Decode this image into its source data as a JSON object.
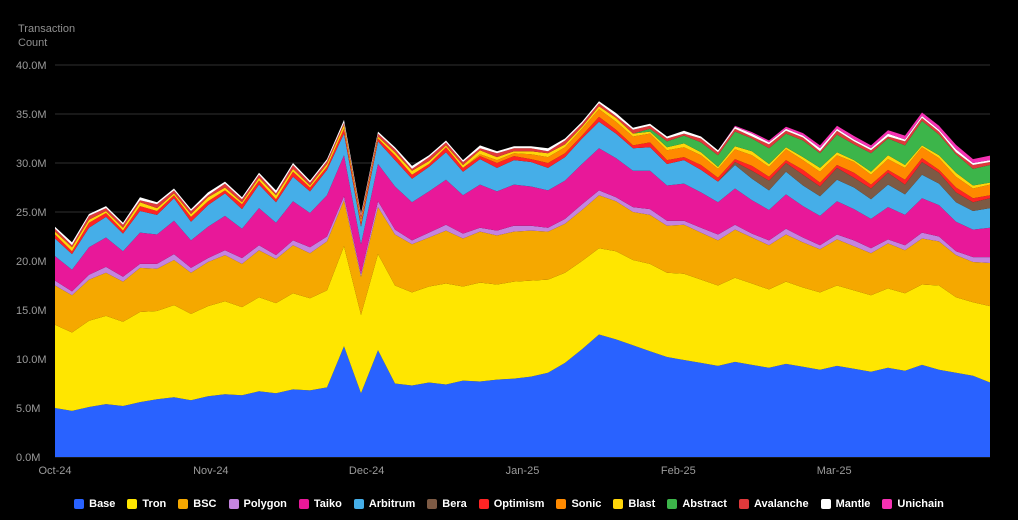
{
  "chart_data": {
    "type": "area",
    "stacked": true,
    "title": "Transaction Count",
    "xlabel": "",
    "ylabel": "Transaction Count",
    "unit": "M",
    "ylim": [
      0,
      40
    ],
    "ytick_step": 5,
    "yticks": [
      "0.0M",
      "5.0M",
      "10.0M",
      "15.0M",
      "20.0M",
      "25.0M",
      "30.0M",
      "35.0M",
      "40.0M"
    ],
    "xticks": [
      "Oct-24",
      "Nov-24",
      "Dec-24",
      "Jan-25",
      "Feb-25",
      "Mar-25"
    ],
    "grid": "horizontal",
    "legend_position": "bottom",
    "background": "#000000",
    "axis_text_color": "#9b9b9b",
    "grid_color": "#2f2f2f",
    "series": [
      {
        "name": "Base",
        "color": "#2962ff",
        "values": [
          5.0,
          4.7,
          5.1,
          5.4,
          5.2,
          5.6,
          5.9,
          6.1,
          5.8,
          6.2,
          6.4,
          6.3,
          6.7,
          6.5,
          6.9,
          6.8,
          7.1,
          11.3,
          6.5,
          10.9,
          7.5,
          7.3,
          7.6,
          7.4,
          7.8,
          7.7,
          7.9,
          8.0,
          8.2,
          8.6,
          9.6,
          11.0,
          12.5,
          12.0,
          11.4,
          10.8,
          10.2,
          9.9,
          9.6,
          9.3,
          9.7,
          9.4,
          9.1,
          9.5,
          9.2,
          8.9,
          9.3,
          9.0,
          8.7,
          9.1,
          8.8,
          9.4,
          8.9,
          8.6,
          8.3,
          7.6
        ]
      },
      {
        "name": "Tron",
        "color": "#ffe600",
        "values": [
          8.5,
          8.0,
          8.8,
          9.0,
          8.6,
          9.2,
          9.0,
          9.4,
          8.8,
          9.2,
          9.5,
          9.0,
          9.6,
          9.2,
          9.8,
          9.4,
          9.9,
          10.2,
          8.0,
          9.8,
          10.0,
          9.5,
          9.8,
          10.3,
          9.6,
          10.1,
          9.7,
          9.9,
          9.8,
          9.5,
          9.2,
          9.0,
          8.8,
          9.0,
          8.7,
          8.9,
          8.6,
          8.8,
          8.5,
          8.2,
          8.6,
          8.3,
          8.0,
          8.4,
          8.1,
          7.9,
          8.2,
          8.0,
          7.8,
          8.1,
          7.9,
          8.2,
          8.6,
          7.7,
          7.5,
          7.8
        ]
      },
      {
        "name": "BSC",
        "color": "#f5a800",
        "values": [
          4.0,
          3.8,
          4.2,
          4.4,
          4.1,
          4.5,
          4.3,
          4.6,
          4.2,
          4.5,
          4.7,
          4.4,
          4.8,
          4.5,
          4.9,
          4.6,
          5.0,
          4.7,
          3.9,
          4.8,
          5.2,
          4.9,
          5.0,
          5.4,
          4.9,
          5.2,
          5.0,
          5.1,
          5.1,
          4.9,
          5.0,
          5.2,
          5.4,
          5.1,
          4.9,
          5.0,
          4.8,
          5.0,
          4.8,
          4.6,
          4.9,
          4.7,
          4.5,
          4.8,
          4.6,
          4.4,
          4.7,
          4.5,
          4.3,
          4.6,
          4.4,
          4.7,
          4.5,
          4.3,
          4.1,
          4.4
        ]
      },
      {
        "name": "Polygon",
        "color": "#c484e0",
        "values": [
          0.5,
          0.4,
          0.5,
          0.6,
          0.5,
          0.4,
          0.5,
          0.6,
          0.5,
          0.4,
          0.5,
          0.6,
          0.5,
          0.4,
          0.5,
          0.6,
          0.5,
          0.4,
          0.3,
          0.6,
          0.5,
          0.4,
          0.5,
          0.6,
          0.5,
          0.4,
          0.5,
          0.6,
          0.5,
          0.4,
          0.5,
          0.6,
          0.5,
          0.4,
          0.5,
          0.6,
          0.5,
          0.4,
          0.5,
          0.6,
          0.5,
          0.4,
          0.5,
          0.6,
          0.5,
          0.4,
          0.5,
          0.6,
          0.5,
          0.4,
          0.5,
          0.6,
          0.5,
          0.4,
          0.5,
          0.6
        ]
      },
      {
        "name": "Taiko",
        "color": "#e81899",
        "values": [
          2.5,
          2.2,
          2.8,
          3.0,
          2.6,
          3.2,
          3.0,
          3.4,
          2.8,
          3.2,
          3.5,
          3.0,
          3.8,
          3.3,
          4.0,
          3.5,
          4.2,
          4.2,
          3.0,
          3.8,
          4.4,
          3.9,
          4.2,
          4.6,
          3.9,
          4.4,
          4.0,
          4.2,
          4.0,
          3.8,
          3.9,
          4.1,
          4.3,
          4.0,
          3.7,
          3.9,
          3.6,
          3.8,
          3.6,
          3.3,
          3.7,
          3.4,
          3.1,
          3.5,
          3.2,
          3.0,
          3.4,
          3.2,
          3.0,
          3.3,
          3.1,
          3.5,
          3.2,
          3.0,
          2.8,
          3.0
        ]
      },
      {
        "name": "Arbitrum",
        "color": "#45aee8",
        "values": [
          1.8,
          1.6,
          2.0,
          2.1,
          1.8,
          2.2,
          2.0,
          2.3,
          1.9,
          2.2,
          2.3,
          2.0,
          2.4,
          2.1,
          2.5,
          2.2,
          2.6,
          2.2,
          1.8,
          2.3,
          2.7,
          2.4,
          2.5,
          2.8,
          2.4,
          2.6,
          2.4,
          2.5,
          2.5,
          2.3,
          2.4,
          2.6,
          2.7,
          2.5,
          2.3,
          2.4,
          2.2,
          2.4,
          2.3,
          2.1,
          2.4,
          2.2,
          2.0,
          2.3,
          2.1,
          2.0,
          2.2,
          2.2,
          2.0,
          2.3,
          2.1,
          2.4,
          2.2,
          2.0,
          1.9,
          2.0
        ]
      },
      {
        "name": "Bera",
        "color": "#7d5a44",
        "values": [
          0,
          0,
          0,
          0,
          0,
          0,
          0,
          0,
          0,
          0,
          0,
          0,
          0,
          0,
          0,
          0,
          0,
          0,
          0,
          0,
          0,
          0,
          0,
          0,
          0,
          0,
          0,
          0,
          0,
          0,
          0,
          0,
          0,
          0,
          0,
          0,
          0,
          0,
          0,
          0,
          0.3,
          0.8,
          1.0,
          0.9,
          1.1,
          1.0,
          1.2,
          1.0,
          1.1,
          1.2,
          1.0,
          1.3,
          1.1,
          1.0,
          0.9,
          1.0
        ]
      },
      {
        "name": "Optimism",
        "color": "#ff2424",
        "values": [
          0.4,
          0.3,
          0.5,
          0.4,
          0.3,
          0.5,
          0.4,
          0.3,
          0.5,
          0.4,
          0.3,
          0.5,
          0.4,
          0.3,
          0.5,
          0.4,
          0.3,
          0.5,
          0.4,
          0.3,
          0.5,
          0.4,
          0.3,
          0.5,
          0.4,
          0.3,
          0.5,
          0.4,
          0.3,
          0.5,
          0.4,
          0.3,
          0.5,
          0.4,
          0.3,
          0.5,
          0.4,
          0.3,
          0.5,
          0.4,
          0.3,
          0.5,
          0.4,
          0.3,
          0.5,
          0.4,
          0.3,
          0.5,
          0.4,
          0.3,
          0.5,
          0.4,
          0.3,
          0.5,
          0.4,
          0.3
        ]
      },
      {
        "name": "Sonic",
        "color": "#ff8a00",
        "values": [
          0,
          0,
          0,
          0,
          0,
          0,
          0,
          0,
          0,
          0,
          0,
          0,
          0,
          0,
          0,
          0,
          0,
          0,
          0,
          0,
          0,
          0,
          0,
          0,
          0,
          0.2,
          0.3,
          0.3,
          0.5,
          0.6,
          0.6,
          0.7,
          0.8,
          0.8,
          0.9,
          0.9,
          1.0,
          1.0,
          1.0,
          0.9,
          1.0,
          1.1,
          1.0,
          1.1,
          1.0,
          1.1,
          1.0,
          1.1,
          1.0,
          1.1,
          1.2,
          1.1,
          1.2,
          1.1,
          1.0,
          1.1
        ]
      },
      {
        "name": "Blast",
        "color": "#ffd60a",
        "values": [
          0.3,
          0.4,
          0.3,
          0.2,
          0.3,
          0.4,
          0.3,
          0.2,
          0.3,
          0.4,
          0.3,
          0.2,
          0.3,
          0.4,
          0.3,
          0.2,
          0.3,
          0.4,
          0.3,
          0.2,
          0.3,
          0.4,
          0.3,
          0.2,
          0.3,
          0.4,
          0.3,
          0.2,
          0.3,
          0.4,
          0.3,
          0.2,
          0.3,
          0.4,
          0.3,
          0.2,
          0.3,
          0.4,
          0.3,
          0.2,
          0.3,
          0.4,
          0.3,
          0.2,
          0.3,
          0.4,
          0.3,
          0.2,
          0.3,
          0.4,
          0.3,
          0.2,
          0.3,
          0.4,
          0.3,
          0.2
        ]
      },
      {
        "name": "Abstract",
        "color": "#3cb54a",
        "values": [
          0,
          0,
          0,
          0,
          0,
          0,
          0,
          0,
          0,
          0,
          0,
          0,
          0,
          0,
          0,
          0,
          0,
          0,
          0,
          0,
          0,
          0,
          0,
          0,
          0,
          0,
          0,
          0,
          0,
          0,
          0,
          0,
          0,
          0,
          0,
          0.3,
          0.6,
          0.8,
          1.0,
          1.2,
          1.5,
          1.3,
          1.6,
          1.4,
          1.7,
          1.5,
          1.8,
          1.6,
          1.9,
          1.7,
          2.0,
          2.5,
          2.1,
          1.9,
          1.7,
          1.8
        ]
      },
      {
        "name": "Avalanche",
        "color": "#e0393b",
        "values": [
          0.3,
          0.2,
          0.4,
          0.3,
          0.3,
          0.2,
          0.4,
          0.3,
          0.3,
          0.2,
          0.4,
          0.3,
          0.3,
          0.2,
          0.4,
          0.3,
          0.3,
          0.2,
          0.4,
          0.3,
          0.3,
          0.2,
          0.4,
          0.3,
          0.3,
          0.2,
          0.4,
          0.3,
          0.3,
          0.2,
          0.4,
          0.3,
          0.3,
          0.2,
          0.4,
          0.3,
          0.3,
          0.2,
          0.4,
          0.3,
          0.3,
          0.2,
          0.4,
          0.3,
          0.3,
          0.2,
          0.4,
          0.3,
          0.3,
          0.2,
          0.4,
          0.3,
          0.3,
          0.2,
          0.4,
          0.3
        ]
      },
      {
        "name": "Mantle",
        "color": "#ffffff",
        "values": [
          0.2,
          0.3,
          0.2,
          0.2,
          0.2,
          0.3,
          0.2,
          0.2,
          0.2,
          0.3,
          0.2,
          0.2,
          0.2,
          0.3,
          0.2,
          0.2,
          0.2,
          0.3,
          0.2,
          0.2,
          0.2,
          0.3,
          0.2,
          0.2,
          0.2,
          0.3,
          0.2,
          0.2,
          0.2,
          0.3,
          0.2,
          0.2,
          0.2,
          0.3,
          0.2,
          0.2,
          0.2,
          0.3,
          0.2,
          0.2,
          0.2,
          0.3,
          0.2,
          0.2,
          0.2,
          0.3,
          0.2,
          0.2,
          0.2,
          0.3,
          0.2,
          0.2,
          0.2,
          0.3,
          0.2,
          0.2
        ]
      },
      {
        "name": "Unichain",
        "color": "#f531b3",
        "values": [
          0,
          0,
          0,
          0,
          0,
          0,
          0,
          0,
          0,
          0,
          0,
          0,
          0,
          0,
          0,
          0,
          0,
          0,
          0,
          0,
          0,
          0,
          0,
          0,
          0,
          0,
          0,
          0,
          0,
          0,
          0,
          0,
          0,
          0,
          0,
          0,
          0,
          0,
          0,
          0,
          0.1,
          0.15,
          0.2,
          0.2,
          0.25,
          0.3,
          0.3,
          0.35,
          0.3,
          0.35,
          0.4,
          0.35,
          0.4,
          0.45,
          0.4,
          0.45
        ]
      }
    ]
  }
}
